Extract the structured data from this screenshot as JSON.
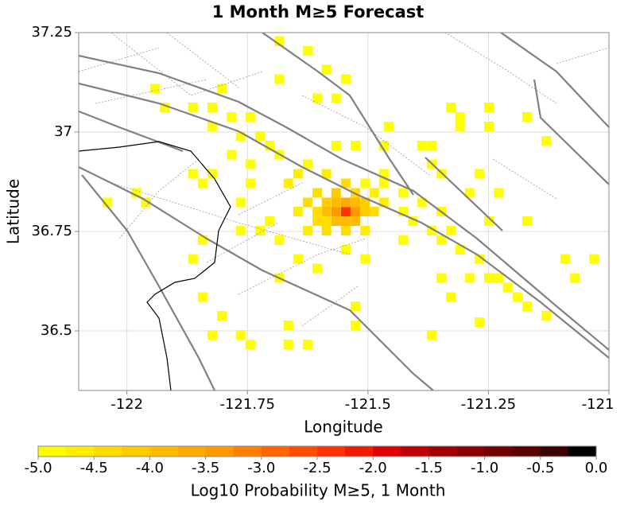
{
  "chart_data": {
    "type": "heatmap",
    "title": "1 Month M≥5 Forecast",
    "x_label": "Longitude",
    "y_label": "Latitude",
    "xlim": [
      -122.1,
      -121.0
    ],
    "ylim": [
      36.35,
      37.25
    ],
    "xticks": [
      -122,
      -121.75,
      -121.5,
      -121.25,
      -121
    ],
    "yticks": [
      36.5,
      36.75,
      37,
      37.25
    ],
    "grid": true,
    "cells": {
      "lon": [
        -121.546,
        -121.566,
        -121.526,
        -121.546,
        -121.546,
        -121.566,
        -121.526,
        -121.566,
        -121.526,
        -121.586,
        -121.506,
        -121.586,
        -121.506,
        -121.605,
        -121.487,
        -121.586,
        -121.605,
        -121.566,
        -121.526,
        -121.546,
        -121.625,
        -121.467,
        -121.645,
        -121.625,
        -121.586,
        -121.546,
        -121.506,
        -121.605,
        -121.487,
        -121.665,
        -121.645,
        -121.625,
        -121.684,
        -121.704,
        -121.506,
        -121.467,
        -121.586,
        -121.427,
        -121.407,
        -121.368,
        -121.348,
        -121.309,
        -121.269,
        -121.229,
        -121.19,
        -121.13,
        -121.704,
        -121.684,
        -121.645,
        -121.605,
        -121.546,
        -121.506,
        -121.427,
        -121.684,
        -121.625,
        -121.586,
        -121.546,
        -121.684,
        -121.605,
        -121.566,
        -121.803,
        -121.863,
        -121.823,
        -121.783,
        -121.744,
        -121.823,
        -121.764,
        -121.724,
        -121.783,
        -121.744,
        -121.863,
        -121.922,
        -121.942,
        -122.041,
        -121.981,
        -121.961,
        -121.843,
        -121.823,
        -121.744,
        -121.764,
        -121.724,
        -121.764,
        -121.863,
        -121.843,
        -121.843,
        -121.803,
        -121.823,
        -121.764,
        -121.744,
        -121.665,
        -121.625,
        -121.665,
        -121.684,
        -121.605,
        -121.526,
        -121.526,
        -121.368,
        -121.269,
        -121.328,
        -121.348,
        -121.289,
        -121.249,
        -121.21,
        -121.17,
        -121.091,
        -121.031,
        -121.071,
        -121.17,
        -121.229,
        -121.269,
        -121.328,
        -121.309,
        -121.249,
        -121.249,
        -121.17,
        -121.13,
        -121.309,
        -121.368,
        -121.388,
        -121.457,
        -121.467,
        -121.526,
        -121.566,
        -121.467,
        -121.368,
        -121.348,
        -121.289,
        -121.249,
        -121.427,
        -121.388,
        -121.348,
        -121.328
      ],
      "lat": [
        36.8,
        36.8,
        36.8,
        36.823,
        36.776,
        36.823,
        36.823,
        36.776,
        36.776,
        36.8,
        36.8,
        36.823,
        36.823,
        36.8,
        36.8,
        36.776,
        36.776,
        36.847,
        36.847,
        36.871,
        36.823,
        36.823,
        36.8,
        36.752,
        36.752,
        36.752,
        36.752,
        36.847,
        36.847,
        36.871,
        36.895,
        36.919,
        36.943,
        36.966,
        36.871,
        36.871,
        36.895,
        36.8,
        36.776,
        36.752,
        36.728,
        36.704,
        36.681,
        36.633,
        36.585,
        36.538,
        36.776,
        36.728,
        36.681,
        36.657,
        36.704,
        36.681,
        36.728,
        37.228,
        37.204,
        37.157,
        37.133,
        37.133,
        37.085,
        37.085,
        37.109,
        37.062,
        37.062,
        37.038,
        37.038,
        37.014,
        36.99,
        36.99,
        36.943,
        36.919,
        36.895,
        37.062,
        37.109,
        36.823,
        36.847,
        36.823,
        36.871,
        36.895,
        36.871,
        36.823,
        36.752,
        36.752,
        36.681,
        36.728,
        36.585,
        36.538,
        36.49,
        36.49,
        36.466,
        36.466,
        36.466,
        36.514,
        36.633,
        36.657,
        36.562,
        36.514,
        36.49,
        36.522,
        36.585,
        36.633,
        36.633,
        36.633,
        36.609,
        36.562,
        36.681,
        36.681,
        36.633,
        36.776,
        36.847,
        36.895,
        37.062,
        37.038,
        37.062,
        37.014,
        37.038,
        36.978,
        37.014,
        36.966,
        36.966,
        37.014,
        36.966,
        36.966,
        36.966,
        36.895,
        36.919,
        36.895,
        36.847,
        36.776,
        36.847,
        36.823,
        36.8,
        36.752
      ],
      "values": [
        -2.5,
        -3.5,
        -3.5,
        -3.7,
        -3.8,
        -3.8,
        -3.9,
        -4.0,
        -4.0,
        -4.0,
        -4.1,
        -4.2,
        -4.2,
        -4.3,
        -4.4,
        -4.3,
        -4.4,
        -4.2,
        -4.3,
        -4.4,
        -4.5,
        -4.6,
        -4.6,
        -4.6,
        -4.5,
        -4.5,
        -4.6,
        -4.5,
        -4.6,
        -4.7,
        -4.7,
        -4.8,
        -4.8,
        -4.9,
        -4.8,
        -4.8,
        -4.7,
        -4.8,
        -4.8,
        -4.9,
        -4.9,
        -4.9,
        -4.9,
        -4.9,
        -4.9,
        -4.9,
        -4.9,
        -4.9,
        -4.9,
        -4.9,
        -4.8,
        -4.9,
        -4.9,
        -5,
        -5,
        -5,
        -5,
        -5,
        -4.9,
        -4.9,
        -4.9,
        -4.9,
        -4.9,
        -4.9,
        -4.9,
        -4.9,
        -4.9,
        -4.9,
        -4.9,
        -4.9,
        -4.9,
        -4.9,
        -5,
        -5,
        -5,
        -5,
        -5,
        -5,
        -5,
        -5,
        -5,
        -5,
        -5,
        -5,
        -5,
        -5,
        -5,
        -5,
        -5,
        -5,
        -5,
        -5,
        -5,
        -5,
        -5,
        -5,
        -5,
        -5,
        -5,
        -5,
        -5,
        -5,
        -5,
        -5,
        -5,
        -5,
        -5,
        -5,
        -5,
        -5,
        -5,
        -5,
        -5,
        -5,
        -5,
        -5,
        -5,
        -5,
        -5,
        -5,
        -5,
        -5,
        -5,
        -5,
        -5,
        -5,
        -5,
        -5,
        -5,
        -5,
        -5,
        -5
      ]
    },
    "colorbar": {
      "label": "Log10 Probability M≥5, 1 Month",
      "lim": [
        -5,
        0
      ],
      "ticks": [
        {
          "value": -5,
          "label": "-5.0"
        },
        -4.5,
        {
          "value": -4,
          "label": "-4.0"
        },
        -3.5,
        {
          "value": -3,
          "label": "-3.0"
        },
        -2.5,
        {
          "value": -2,
          "label": "-2.0"
        },
        -1.5,
        {
          "value": -1,
          "label": "-1.0"
        },
        -0.5,
        {
          "value": 0,
          "label": "0.0"
        }
      ],
      "colors": [
        "#ffff00",
        "#ffee00",
        "#ffdd00",
        "#ffcc00",
        "#ffbb00",
        "#ffaa00",
        "#ff9900",
        "#ff8000",
        "#ff6600",
        "#ff4d00",
        "#ff3300",
        "#f01a00",
        "#dd0000",
        "#c00000",
        "#a00000",
        "#880000",
        "#700000",
        "#580000",
        "#380000",
        "#000000"
      ]
    }
  }
}
